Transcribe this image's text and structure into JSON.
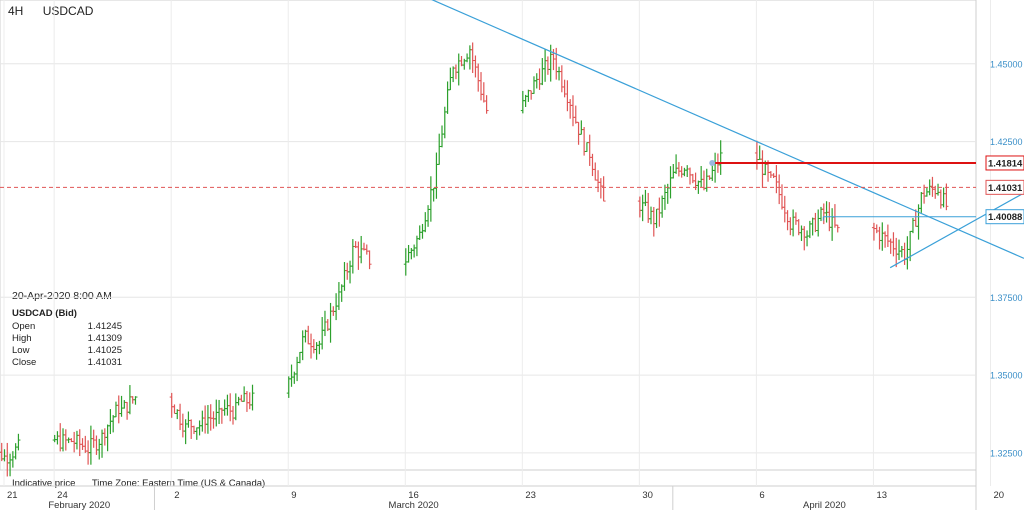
{
  "header": {
    "interval": "4H",
    "symbol": "USDCAD"
  },
  "info_box": {
    "datetime": "20-Apr-2020 8:00 AM",
    "symbol_label": "USDCAD (Bid)",
    "rows": [
      {
        "label": "Open",
        "value": "1.41245"
      },
      {
        "label": "High",
        "value": "1.41309"
      },
      {
        "label": "Low",
        "value": "1.41025"
      },
      {
        "label": "Close",
        "value": "1.41031"
      }
    ]
  },
  "footer": {
    "price_note": "Indicative price",
    "timezone": "Time Zone: Eastern Time (US & Canada)"
  },
  "colors": {
    "up": "#2ca02c",
    "down": "#e05555",
    "trend": "#3aa0d8",
    "resistance": "#dd1111",
    "axis_text": "#3a8fc8"
  },
  "chart_data": {
    "type": "ohlc",
    "y_axis": {
      "side": "right",
      "ticks": [
        "1.32500",
        "1.35000",
        "1.37500",
        "1.42500",
        "1.45000"
      ],
      "ylim": [
        1.3195,
        1.4705
      ]
    },
    "x_axis": {
      "day_ticks": [
        "21",
        "24",
        "2",
        "9",
        "16",
        "23",
        "30",
        "6",
        "13",
        "20"
      ],
      "month_labels": [
        "February 2020",
        "March 2020",
        "April 2020"
      ]
    },
    "price_labels": [
      "1.41814",
      "1.41031",
      "1.40088"
    ],
    "levels": [
      {
        "name": "resistance",
        "value": 1.41814
      },
      {
        "name": "current",
        "value": 1.41031
      },
      {
        "name": "support",
        "value": 1.40088
      }
    ],
    "trendlines": [
      {
        "name": "descending",
        "from": [
          "2020-03-17",
          1.472
        ],
        "to": [
          "2020-04-22",
          1.3875
        ]
      },
      {
        "name": "ascending",
        "from": [
          "2020-04-14",
          1.3845
        ],
        "to": [
          "2020-04-22",
          1.4085
        ]
      }
    ],
    "daily_closes": [
      [
        "2020-02-20",
        1.3245
      ],
      [
        "2020-02-21",
        1.3265
      ],
      [
        "2020-02-24",
        1.3285
      ],
      [
        "2020-02-25",
        1.327
      ],
      [
        "2020-02-26",
        1.33
      ],
      [
        "2020-02-27",
        1.3395
      ],
      [
        "2020-02-28",
        1.343
      ],
      [
        "2020-03-02",
        1.333
      ],
      [
        "2020-03-03",
        1.334
      ],
      [
        "2020-03-04",
        1.3365
      ],
      [
        "2020-03-05",
        1.3385
      ],
      [
        "2020-03-06",
        1.342
      ],
      [
        "2020-03-09",
        1.361
      ],
      [
        "2020-03-10",
        1.36
      ],
      [
        "2020-03-11",
        1.374
      ],
      [
        "2020-03-12",
        1.39
      ],
      [
        "2020-03-13",
        1.387
      ],
      [
        "2020-03-16",
        1.395
      ],
      [
        "2020-03-17",
        1.415
      ],
      [
        "2020-03-18",
        1.45
      ],
      [
        "2020-03-19",
        1.455
      ],
      [
        "2020-03-20",
        1.435
      ],
      [
        "2020-03-23",
        1.445
      ],
      [
        "2020-03-24",
        1.452
      ],
      [
        "2020-03-25",
        1.438
      ],
      [
        "2020-03-26",
        1.422
      ],
      [
        "2020-03-27",
        1.405
      ],
      [
        "2020-03-30",
        1.4
      ],
      [
        "2020-03-31",
        1.412
      ],
      [
        "2020-04-01",
        1.418
      ],
      [
        "2020-04-02",
        1.41
      ],
      [
        "2020-04-03",
        1.42
      ],
      [
        "2020-04-06",
        1.412
      ],
      [
        "2020-04-07",
        1.402
      ],
      [
        "2020-04-08",
        1.397
      ],
      [
        "2020-04-09",
        1.401
      ],
      [
        "2020-04-10",
        1.396
      ],
      [
        "2020-04-13",
        1.393
      ],
      [
        "2020-04-14",
        1.389
      ],
      [
        "2020-04-15",
        1.407
      ],
      [
        "2020-04-16",
        1.41
      ],
      [
        "2020-04-17",
        1.4
      ],
      [
        "2020-04-20",
        1.4103
      ]
    ]
  }
}
